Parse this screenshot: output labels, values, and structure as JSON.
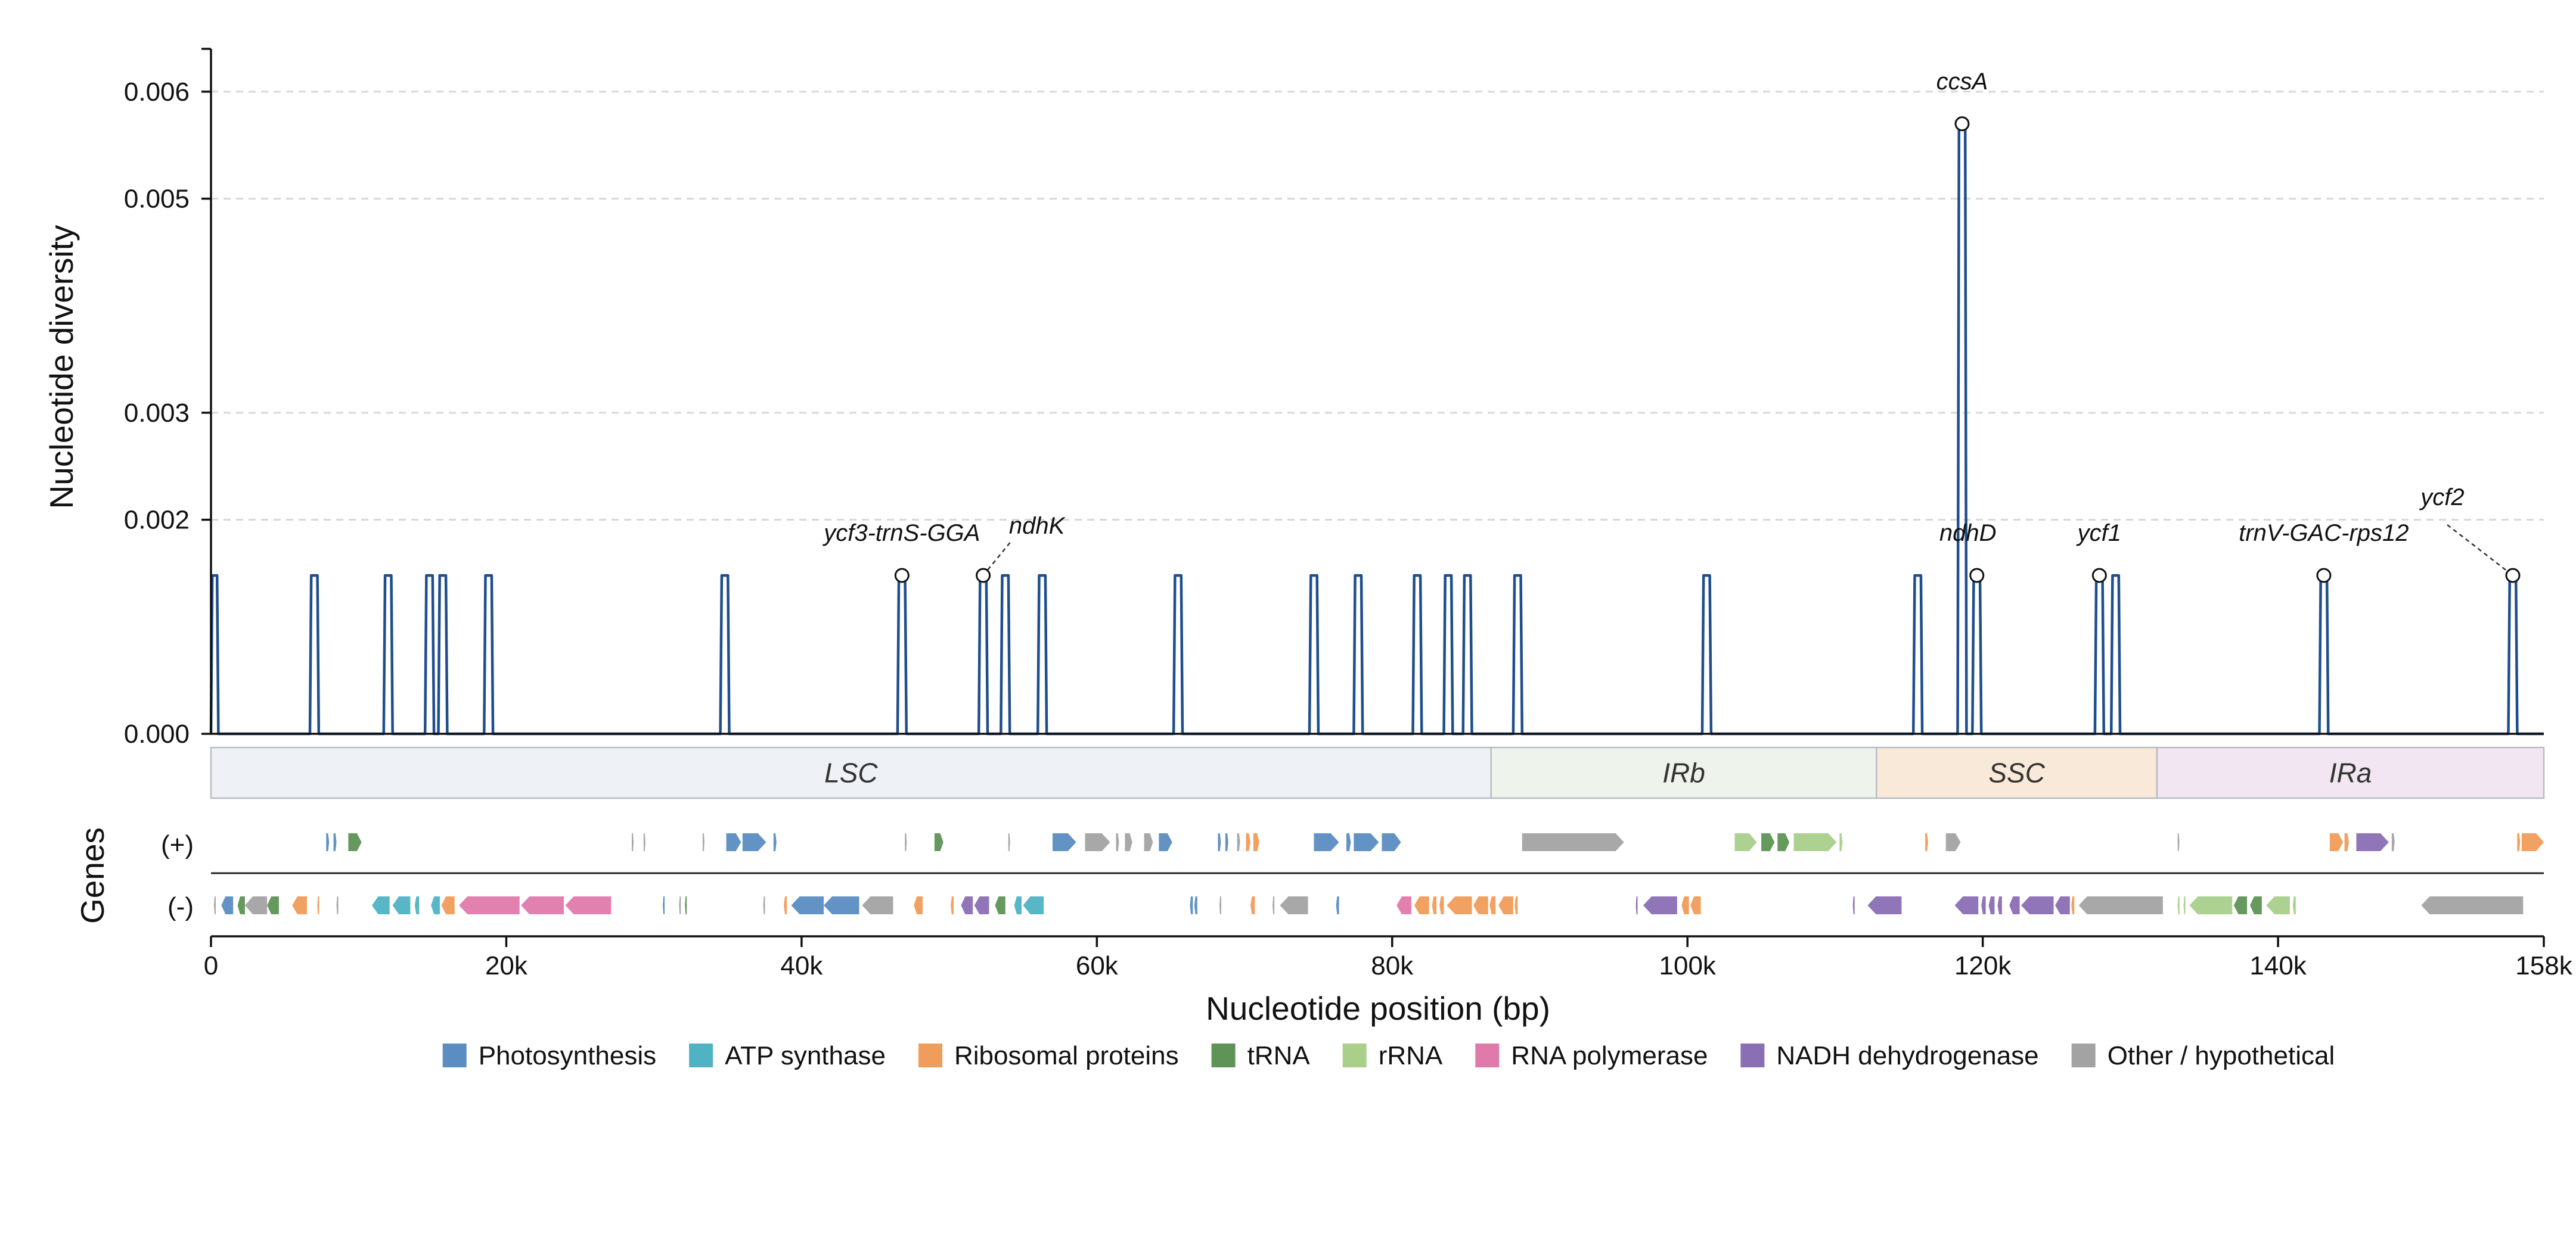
{
  "chart_data": {
    "type": "line",
    "title": "",
    "xlabel": "Nucleotide position (bp)",
    "ylabel": "Nucleotide diversity",
    "xlim": [
      0,
      158000
    ],
    "ylim": [
      0,
      0.0064
    ],
    "grid": "horizontal dashed",
    "x_ticks": [
      {
        "value": 0,
        "label": "0"
      },
      {
        "value": 20000,
        "label": "20k"
      },
      {
        "value": 40000,
        "label": "40k"
      },
      {
        "value": 60000,
        "label": "60k"
      },
      {
        "value": 80000,
        "label": "80k"
      },
      {
        "value": 100000,
        "label": "100k"
      },
      {
        "value": 120000,
        "label": "120k"
      },
      {
        "value": 140000,
        "label": "140k"
      },
      {
        "value": 158000,
        "label": "158k"
      }
    ],
    "y_ticks": [
      {
        "value": 0,
        "label": "0.000"
      },
      {
        "value": 0.002,
        "label": "0.002"
      },
      {
        "value": 0.003,
        "label": "0.003"
      },
      {
        "value": 0.005,
        "label": "0.005"
      },
      {
        "value": 0.006,
        "label": "0.006"
      }
    ],
    "series": [
      {
        "color": "#1f4e8c",
        "peaks": [
          {
            "start": 0,
            "end": 500,
            "value": 0.00148
          },
          {
            "start": 6700,
            "end": 7300,
            "value": 0.00148
          },
          {
            "start": 11700,
            "end": 12300,
            "value": 0.00148
          },
          {
            "start": 14500,
            "end": 15100,
            "value": 0.00148
          },
          {
            "start": 15400,
            "end": 16000,
            "value": 0.00148
          },
          {
            "start": 18500,
            "end": 19100,
            "value": 0.00148
          },
          {
            "start": 34500,
            "end": 35100,
            "value": 0.00148
          },
          {
            "start": 46500,
            "end": 47100,
            "value": 0.00148
          },
          {
            "start": 52000,
            "end": 52600,
            "value": 0.00148
          },
          {
            "start": 53500,
            "end": 54100,
            "value": 0.00148
          },
          {
            "start": 56000,
            "end": 56600,
            "value": 0.00148
          },
          {
            "start": 65200,
            "end": 65800,
            "value": 0.00148
          },
          {
            "start": 74400,
            "end": 75000,
            "value": 0.00148
          },
          {
            "start": 77400,
            "end": 78000,
            "value": 0.00148
          },
          {
            "start": 81400,
            "end": 82000,
            "value": 0.00148
          },
          {
            "start": 83500,
            "end": 84100,
            "value": 0.00148
          },
          {
            "start": 84800,
            "end": 85400,
            "value": 0.00148
          },
          {
            "start": 88200,
            "end": 88800,
            "value": 0.00148
          },
          {
            "start": 101000,
            "end": 101600,
            "value": 0.00148
          },
          {
            "start": 115300,
            "end": 115900,
            "value": 0.00148
          },
          {
            "start": 118300,
            "end": 118900,
            "value": 0.0057
          },
          {
            "start": 119300,
            "end": 119900,
            "value": 0.00148
          },
          {
            "start": 127600,
            "end": 128200,
            "value": 0.00148
          },
          {
            "start": 128700,
            "end": 129300,
            "value": 0.00148
          },
          {
            "start": 142800,
            "end": 143400,
            "value": 0.00148
          },
          {
            "start": 155600,
            "end": 156200,
            "value": 0.00148
          }
        ]
      }
    ],
    "annotations": [
      {
        "text": "ycf3-trnS-GGA",
        "x": 46800,
        "y": 0.00148
      },
      {
        "text": "ndhK",
        "x": 52300,
        "y": 0.00148
      },
      {
        "text": "ccsA",
        "x": 118600,
        "y": 0.0057
      },
      {
        "text": "ndhD",
        "x": 119600,
        "y": 0.00148
      },
      {
        "text": "ycf1",
        "x": 127900,
        "y": 0.00148
      },
      {
        "text": "trnV-GAC-rps12",
        "x": 143100,
        "y": 0.00148
      },
      {
        "text": "ycf2",
        "x": 155900,
        "y": 0.00148
      }
    ],
    "regions": [
      {
        "label": "LSC",
        "start": 0,
        "end": 86700,
        "color": "#eef2f6"
      },
      {
        "label": "IRb",
        "start": 86700,
        "end": 112800,
        "color": "#eef4ec"
      },
      {
        "label": "SSC",
        "start": 112800,
        "end": 131800,
        "color": "#f9e9d9"
      },
      {
        "label": "IRa",
        "start": 131800,
        "end": 158000,
        "color": "#f1e6f1"
      }
    ],
    "gene_track": {
      "title": "Genes",
      "plus_label": "(+)",
      "minus_label": "(-)",
      "plus": [
        {
          "s": 7800,
          "e": 8000,
          "c": "photo"
        },
        {
          "s": 8300,
          "e": 8500,
          "c": "photo"
        },
        {
          "s": 9300,
          "e": 10200,
          "c": "trna"
        },
        {
          "s": 28500,
          "e": 28600,
          "c": "other"
        },
        {
          "s": 29300,
          "e": 29400,
          "c": "other"
        },
        {
          "s": 33300,
          "e": 33400,
          "c": "other"
        },
        {
          "s": 34900,
          "e": 35900,
          "c": "photo"
        },
        {
          "s": 36000,
          "e": 37600,
          "c": "photo"
        },
        {
          "s": 38100,
          "e": 38300,
          "c": "photo"
        },
        {
          "s": 47000,
          "e": 47100,
          "c": "other"
        },
        {
          "s": 49000,
          "e": 49600,
          "c": "trna"
        },
        {
          "s": 54000,
          "e": 54100,
          "c": "other"
        },
        {
          "s": 57000,
          "e": 58600,
          "c": "photo"
        },
        {
          "s": 59200,
          "e": 60900,
          "c": "other"
        },
        {
          "s": 61300,
          "e": 61500,
          "c": "other"
        },
        {
          "s": 61900,
          "e": 62400,
          "c": "other"
        },
        {
          "s": 63200,
          "e": 63800,
          "c": "other"
        },
        {
          "s": 64200,
          "e": 65100,
          "c": "photo"
        },
        {
          "s": 68200,
          "e": 68400,
          "c": "photo"
        },
        {
          "s": 68700,
          "e": 68900,
          "c": "photo"
        },
        {
          "s": 69500,
          "e": 69700,
          "c": "other"
        },
        {
          "s": 70100,
          "e": 70400,
          "c": "ribo"
        },
        {
          "s": 70600,
          "e": 71000,
          "c": "ribo"
        },
        {
          "s": 74700,
          "e": 76400,
          "c": "photo"
        },
        {
          "s": 76900,
          "e": 77200,
          "c": "photo"
        },
        {
          "s": 77400,
          "e": 79100,
          "c": "photo"
        },
        {
          "s": 79300,
          "e": 80600,
          "c": "photo"
        },
        {
          "s": 88800,
          "e": 95700,
          "c": "other"
        },
        {
          "s": 103200,
          "e": 104700,
          "c": "rrna"
        },
        {
          "s": 105000,
          "e": 105900,
          "c": "trna"
        },
        {
          "s": 106100,
          "e": 106900,
          "c": "trna"
        },
        {
          "s": 107200,
          "e": 110100,
          "c": "rrna"
        },
        {
          "s": 110300,
          "e": 110500,
          "c": "rrna"
        },
        {
          "s": 116100,
          "e": 116300,
          "c": "ribo"
        },
        {
          "s": 117500,
          "e": 118500,
          "c": "other"
        },
        {
          "s": 133200,
          "e": 133300,
          "c": "other"
        },
        {
          "s": 143500,
          "e": 144400,
          "c": "ribo"
        },
        {
          "s": 144500,
          "e": 144800,
          "c": "ribo"
        },
        {
          "s": 145300,
          "e": 147500,
          "c": "nadh"
        },
        {
          "s": 147700,
          "e": 147900,
          "c": "other"
        },
        {
          "s": 156200,
          "e": 156400,
          "c": "ribo"
        },
        {
          "s": 156500,
          "e": 158000,
          "c": "ribo"
        }
      ],
      "minus": [
        {
          "s": 200,
          "e": 300,
          "c": "other"
        },
        {
          "s": 700,
          "e": 1500,
          "c": "photo"
        },
        {
          "s": 1800,
          "e": 2300,
          "c": "trna"
        },
        {
          "s": 2300,
          "e": 3800,
          "c": "other"
        },
        {
          "s": 3800,
          "e": 4600,
          "c": "trna"
        },
        {
          "s": 5500,
          "e": 6500,
          "c": "ribo"
        },
        {
          "s": 7200,
          "e": 7300,
          "c": "ribo"
        },
        {
          "s": 8500,
          "e": 8600,
          "c": "other"
        },
        {
          "s": 10900,
          "e": 12100,
          "c": "atp"
        },
        {
          "s": 12300,
          "e": 13500,
          "c": "atp"
        },
        {
          "s": 13800,
          "e": 14100,
          "c": "atp"
        },
        {
          "s": 14900,
          "e": 15500,
          "c": "atp"
        },
        {
          "s": 15600,
          "e": 16500,
          "c": "ribo"
        },
        {
          "s": 16800,
          "e": 20900,
          "c": "rnapol"
        },
        {
          "s": 21000,
          "e": 23900,
          "c": "rnapol"
        },
        {
          "s": 24000,
          "e": 27100,
          "c": "rnapol"
        },
        {
          "s": 30600,
          "e": 30700,
          "c": "photo"
        },
        {
          "s": 31700,
          "e": 31800,
          "c": "other"
        },
        {
          "s": 32100,
          "e": 32200,
          "c": "trna"
        },
        {
          "s": 37400,
          "e": 37500,
          "c": "other"
        },
        {
          "s": 38800,
          "e": 39000,
          "c": "ribo"
        },
        {
          "s": 39300,
          "e": 41500,
          "c": "photo"
        },
        {
          "s": 41500,
          "e": 43900,
          "c": "photo"
        },
        {
          "s": 44100,
          "e": 46200,
          "c": "other"
        },
        {
          "s": 47600,
          "e": 48200,
          "c": "ribo"
        },
        {
          "s": 50100,
          "e": 50300,
          "c": "ribo"
        },
        {
          "s": 50800,
          "e": 51600,
          "c": "nadh"
        },
        {
          "s": 51700,
          "e": 52700,
          "c": "nadh"
        },
        {
          "s": 53100,
          "e": 53800,
          "c": "trna"
        },
        {
          "s": 54400,
          "e": 54900,
          "c": "atp"
        },
        {
          "s": 55000,
          "e": 56400,
          "c": "atp"
        },
        {
          "s": 66300,
          "e": 66500,
          "c": "photo"
        },
        {
          "s": 66600,
          "e": 66800,
          "c": "photo"
        },
        {
          "s": 68300,
          "e": 68400,
          "c": "other"
        },
        {
          "s": 70400,
          "e": 70700,
          "c": "ribo"
        },
        {
          "s": 71900,
          "e": 72000,
          "c": "other"
        },
        {
          "s": 72400,
          "e": 74300,
          "c": "other"
        },
        {
          "s": 76200,
          "e": 76400,
          "c": "photo"
        },
        {
          "s": 80300,
          "e": 81300,
          "c": "rnapol"
        },
        {
          "s": 81500,
          "e": 82500,
          "c": "ribo"
        },
        {
          "s": 82700,
          "e": 83000,
          "c": "ribo"
        },
        {
          "s": 83200,
          "e": 83500,
          "c": "ribo"
        },
        {
          "s": 83700,
          "e": 85400,
          "c": "ribo"
        },
        {
          "s": 85500,
          "e": 86500,
          "c": "ribo"
        },
        {
          "s": 86600,
          "e": 87000,
          "c": "ribo"
        },
        {
          "s": 87200,
          "e": 88200,
          "c": "ribo"
        },
        {
          "s": 88300,
          "e": 88500,
          "c": "ribo"
        },
        {
          "s": 96500,
          "e": 96600,
          "c": "nadh"
        },
        {
          "s": 97000,
          "e": 99300,
          "c": "nadh"
        },
        {
          "s": 99600,
          "e": 100100,
          "c": "ribo"
        },
        {
          "s": 100200,
          "e": 100900,
          "c": "ribo"
        },
        {
          "s": 111200,
          "e": 111300,
          "c": "nadh"
        },
        {
          "s": 112200,
          "e": 114500,
          "c": "nadh"
        },
        {
          "s": 118100,
          "e": 119700,
          "c": "nadh"
        },
        {
          "s": 119900,
          "e": 120200,
          "c": "nadh"
        },
        {
          "s": 120400,
          "e": 120800,
          "c": "nadh"
        },
        {
          "s": 121000,
          "e": 121300,
          "c": "nadh"
        },
        {
          "s": 121800,
          "e": 122500,
          "c": "nadh"
        },
        {
          "s": 122600,
          "e": 124800,
          "c": "nadh"
        },
        {
          "s": 124900,
          "e": 125900,
          "c": "nadh"
        },
        {
          "s": 126000,
          "e": 126200,
          "c": "ribo"
        },
        {
          "s": 126500,
          "e": 132200,
          "c": "other"
        },
        {
          "s": 133200,
          "e": 133300,
          "c": "rrna"
        },
        {
          "s": 133600,
          "e": 133700,
          "c": "rrna"
        },
        {
          "s": 134000,
          "e": 136900,
          "c": "rrna"
        },
        {
          "s": 137000,
          "e": 137900,
          "c": "trna"
        },
        {
          "s": 138100,
          "e": 138900,
          "c": "trna"
        },
        {
          "s": 139200,
          "e": 140800,
          "c": "rrna"
        },
        {
          "s": 141000,
          "e": 141200,
          "c": "rrna"
        },
        {
          "s": 149700,
          "e": 156600,
          "c": "other"
        }
      ]
    },
    "legend": {
      "placement": "bottom",
      "entries": [
        {
          "key": "photo",
          "label": "Photosynthesis",
          "color": "#5b8cc2"
        },
        {
          "key": "atp",
          "label": "ATP synthase",
          "color": "#4fb3c4"
        },
        {
          "key": "ribo",
          "label": "Ribosomal proteins",
          "color": "#f09c5a"
        },
        {
          "key": "trna",
          "label": "tRNA",
          "color": "#5e9455"
        },
        {
          "key": "rrna",
          "label": "rRNA",
          "color": "#a9cf8a"
        },
        {
          "key": "rnapol",
          "label": "RNA polymerase",
          "color": "#e07aab"
        },
        {
          "key": "nadh",
          "label": "NADH dehydrogenase",
          "color": "#8a6fb5"
        },
        {
          "key": "other",
          "label": "Other / hypothetical",
          "color": "#a3a3a3"
        }
      ]
    }
  }
}
